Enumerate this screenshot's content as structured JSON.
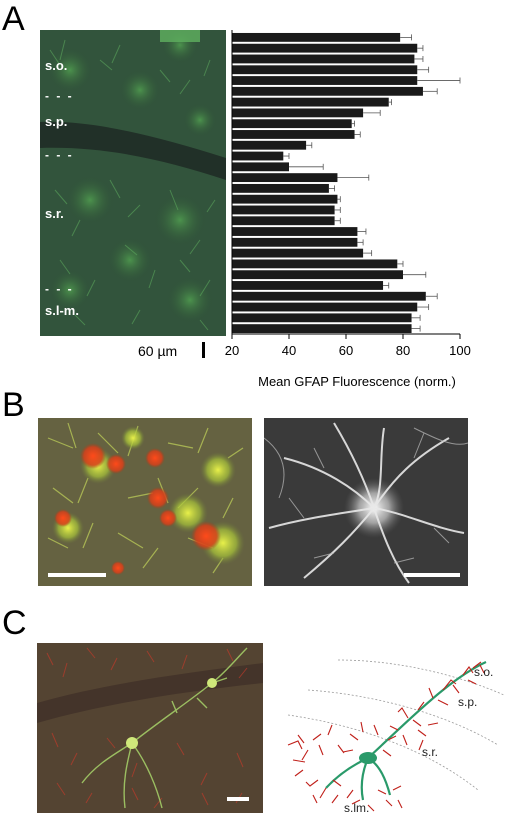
{
  "panels": {
    "a_letter": "A",
    "b_letter": "B",
    "c_letter": "C"
  },
  "panel_a": {
    "layer_labels": [
      "s.o.",
      "s.p.",
      "s.r.",
      "s.l-m."
    ],
    "dash_marker": "- - -",
    "scale_label": "60 µm"
  },
  "panel_c": {
    "drawing_labels": [
      "s.o.",
      "s.p.",
      "s.r.",
      "s.lm."
    ]
  },
  "chart_data": {
    "type": "bar",
    "orientation": "horizontal",
    "xlabel": "Mean GFAP Fluorescence (norm.)",
    "xlim": [
      20,
      100
    ],
    "xticks": [
      20,
      40,
      60,
      80,
      100
    ],
    "values": [
      79,
      85,
      84,
      85,
      85,
      87,
      75,
      66,
      62,
      63,
      46,
      38,
      40,
      57,
      54,
      57,
      56,
      56,
      64,
      64,
      66,
      78,
      80,
      73,
      88,
      85,
      83,
      83
    ],
    "errors": [
      4,
      2,
      3,
      4,
      15,
      5,
      1,
      6,
      1,
      2,
      2,
      2,
      12,
      11,
      2,
      1,
      2,
      2,
      3,
      2,
      3,
      2,
      8,
      2,
      4,
      4,
      3,
      3
    ],
    "grid": false
  }
}
